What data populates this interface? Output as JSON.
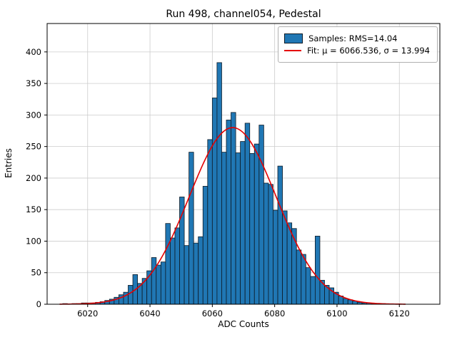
{
  "figure": {
    "title": "Run 498, channel054, Pedestal",
    "xlabel": "ADC Counts",
    "ylabel": "Entries"
  },
  "legend": {
    "samples_label": "Samples: RMS=14.04",
    "fit_label": "Fit: μ = 6066.536, σ = 13.994"
  },
  "colors": {
    "bar_fill": "#2077b4",
    "bar_edge": "#0d1a26",
    "fit_line": "#e50000",
    "grid": "#cccccc",
    "axis": "#000000"
  },
  "chart_data": {
    "type": "bar",
    "subtype": "histogram-with-gaussian-fit",
    "title": "Run 498, channel054, Pedestal",
    "xlabel": "ADC Counts",
    "ylabel": "Entries",
    "bin_start": 6012,
    "bin_width": 1.5,
    "counts": [
      1,
      0,
      1,
      1,
      2,
      2,
      2,
      3,
      4,
      6,
      8,
      11,
      15,
      19,
      30,
      47,
      33,
      41,
      53,
      74,
      62,
      67,
      128,
      105,
      121,
      170,
      93,
      241,
      97,
      107,
      187,
      261,
      327,
      383,
      241,
      292,
      304,
      240,
      258,
      287,
      239,
      254,
      284,
      192,
      190,
      149,
      219,
      148,
      129,
      120,
      86,
      79,
      58,
      44,
      108,
      38,
      30,
      26,
      19,
      13,
      9,
      7,
      5,
      3,
      2,
      2,
      1,
      1,
      1
    ],
    "fit": {
      "mu": 6066.536,
      "sigma": 13.994,
      "amplitude": 280,
      "rms": 14.04
    },
    "x_ticks": [
      6020,
      6040,
      6060,
      6080,
      6100,
      6120
    ],
    "y_ticks": [
      0,
      50,
      100,
      150,
      200,
      250,
      300,
      350,
      400
    ],
    "xlim": [
      6007,
      6133
    ],
    "ylim": [
      0,
      445
    ],
    "grid": true,
    "legend_position": "upper right"
  }
}
